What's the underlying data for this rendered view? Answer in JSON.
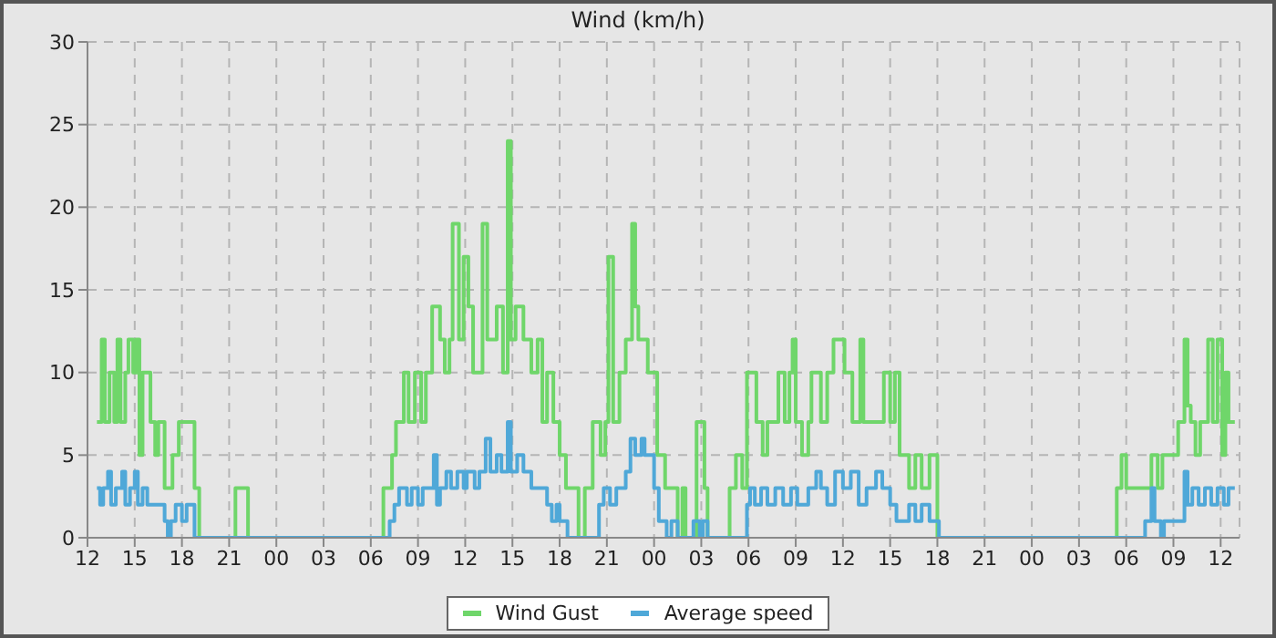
{
  "chart_data": {
    "type": "step",
    "title": "Wind (km/h)",
    "xlim": [
      "--01-01T12:00",
      "--01-04T13:12"
    ],
    "ylim": [
      0,
      30
    ],
    "yticks": [
      0,
      5,
      10,
      15,
      20,
      25,
      30
    ],
    "xticks": [
      {
        "value": "--01-01T12:00",
        "label": "12"
      },
      {
        "value": "--01-01T15:00",
        "label": "15"
      },
      {
        "value": "--01-01T18:00",
        "label": "18"
      },
      {
        "value": "--01-01T21:00",
        "label": "21"
      },
      {
        "value": "--01-02T00:00",
        "label": "00"
      },
      {
        "value": "--01-02T03:00",
        "label": "03"
      },
      {
        "value": "--01-02T06:00",
        "label": "06"
      },
      {
        "value": "--01-02T09:00",
        "label": "09"
      },
      {
        "value": "--01-02T12:00",
        "label": "12"
      },
      {
        "value": "--01-02T15:00",
        "label": "15"
      },
      {
        "value": "--01-02T18:00",
        "label": "18"
      },
      {
        "value": "--01-02T21:00",
        "label": "21"
      },
      {
        "value": "--01-03T00:00",
        "label": "00"
      },
      {
        "value": "--01-03T03:00",
        "label": "03"
      },
      {
        "value": "--01-03T06:00",
        "label": "06"
      },
      {
        "value": "--01-03T09:00",
        "label": "09"
      },
      {
        "value": "--01-03T12:00",
        "label": "12"
      },
      {
        "value": "--01-03T15:00",
        "label": "15"
      },
      {
        "value": "--01-03T18:00",
        "label": "18"
      },
      {
        "value": "--01-03T21:00",
        "label": "21"
      },
      {
        "value": "--01-04T00:00",
        "label": "00"
      },
      {
        "value": "--01-04T03:00",
        "label": "03"
      },
      {
        "value": "--01-04T06:00",
        "label": "06"
      },
      {
        "value": "--01-04T09:00",
        "label": "09"
      },
      {
        "value": "--01-04T12:00",
        "label": "12"
      }
    ],
    "grid": true,
    "legend": "bottom",
    "marker": "none",
    "line_style": "solid",
    "series": [
      {
        "name": "Wind Gust",
        "color": "#6fd66a",
        "x": [
          "--01-01T12:36",
          "--01-01T12:54",
          "--01-01T13:06",
          "--01-01T13:24",
          "--01-01T13:42",
          "--01-01T13:54",
          "--01-01T14:06",
          "--01-01T14:24",
          "--01-01T14:36",
          "--01-01T14:54",
          "--01-01T15:06",
          "--01-01T15:18",
          "--01-01T15:30",
          "--01-01T16:00",
          "--01-01T16:18",
          "--01-01T16:30",
          "--01-01T16:54",
          "--01-01T17:24",
          "--01-01T17:48",
          "--01-01T18:48",
          "--01-01T19:06",
          "--01-01T21:24",
          "--01-01T22:12",
          "--01-02T06:48",
          "--01-02T07:21",
          "--01-02T07:36",
          "--01-02T08:06",
          "--01-02T08:24",
          "--01-02T08:48",
          "--01-02T09:12",
          "--01-02T09:30",
          "--01-02T09:54",
          "--01-02T10:24",
          "--01-02T10:42",
          "--01-02T11:00",
          "--01-02T11:12",
          "--01-02T11:36",
          "--01-02T11:54",
          "--01-02T12:12",
          "--01-02T12:30",
          "--01-02T13:06",
          "--01-02T13:24",
          "--01-02T14:00",
          "--01-02T14:24",
          "--01-02T14:42",
          "--01-02T14:54",
          "--01-02T15:12",
          "--01-02T15:42",
          "--01-02T16:12",
          "--01-02T16:36",
          "--01-02T16:54",
          "--01-02T17:12",
          "--01-02T17:36",
          "--01-02T18:00",
          "--01-02T18:24",
          "--01-02T18:42",
          "--01-02T19:12",
          "--01-02T19:36",
          "--01-02T20:06",
          "--01-02T20:36",
          "--01-02T20:54",
          "--01-02T21:06",
          "--01-02T21:24",
          "--01-02T21:48",
          "--01-02T22:12",
          "--01-02T22:36",
          "--01-02T22:48",
          "--01-02T23:00",
          "--01-02T23:36",
          "--01-03T00:12",
          "--01-03T00:42",
          "--01-03T01:30",
          "--01-03T01:48",
          "--01-03T02:00",
          "--01-03T02:42",
          "--01-03T03:12",
          "--01-03T03:24",
          "--01-03T04:48",
          "--01-03T05:12",
          "--01-03T05:36",
          "--01-03T05:54",
          "--01-03T06:30",
          "--01-03T06:54",
          "--01-03T07:12",
          "--01-03T07:54",
          "--01-03T08:18",
          "--01-03T08:36",
          "--01-03T08:48",
          "--01-03T09:00",
          "--01-03T09:24",
          "--01-03T09:48",
          "--01-03T10:00",
          "--01-03T10:36",
          "--01-03T11:00",
          "--01-03T11:24",
          "--01-03T12:06",
          "--01-03T12:36",
          "--01-03T13:06",
          "--01-03T13:18",
          "--01-03T14:36",
          "--01-03T15:00",
          "--01-03T15:18",
          "--01-03T15:36",
          "--01-03T16:12",
          "--01-03T16:36",
          "--01-03T17:00",
          "--01-03T17:30",
          "--01-03T18:00",
          "--01-04T05:24",
          "--01-04T05:42",
          "--01-04T06:00",
          "--01-04T07:36",
          "--01-04T08:00",
          "--01-04T08:18",
          "--01-04T09:18",
          "--01-04T09:42",
          "--01-04T09:54",
          "--01-04T10:06",
          "--01-04T10:24",
          "--01-04T10:42",
          "--01-04T11:12",
          "--01-04T11:30",
          "--01-04T11:48",
          "--01-04T12:06",
          "--01-04T12:18",
          "--01-04T12:30",
          "--01-04T12:54"
        ],
        "values": [
          7,
          12,
          7,
          10,
          7,
          12,
          7,
          10,
          12,
          10,
          12,
          5,
          10,
          7,
          5,
          7,
          3,
          5,
          7,
          3,
          0,
          3,
          0,
          3,
          5,
          7,
          10,
          7,
          10,
          7,
          10,
          14,
          12,
          10,
          12,
          19,
          12,
          17,
          14,
          10,
          19,
          12,
          14,
          10,
          24,
          12,
          14,
          12,
          10,
          12,
          7,
          10,
          7,
          5,
          3,
          3,
          0,
          3,
          7,
          5,
          7,
          17,
          7,
          10,
          12,
          19,
          14,
          12,
          10,
          5,
          3,
          0,
          3,
          0,
          7,
          3,
          0,
          3,
          5,
          3,
          10,
          7,
          5,
          7,
          10,
          7,
          10,
          12,
          7,
          5,
          7,
          10,
          7,
          10,
          12,
          10,
          7,
          12,
          7,
          10,
          7,
          10,
          5,
          3,
          5,
          3,
          5,
          0,
          3,
          5,
          3,
          5,
          3,
          5,
          7,
          12,
          8,
          7,
          5,
          7,
          12,
          7,
          12,
          5,
          10,
          7,
          7
        ]
      },
      {
        "name": "Average speed",
        "color": "#4fa8d8",
        "x": [
          "--01-01T12:36",
          "--01-01T12:48",
          "--01-01T13:00",
          "--01-01T13:18",
          "--01-01T13:30",
          "--01-01T13:48",
          "--01-01T14:12",
          "--01-01T14:24",
          "--01-01T14:42",
          "--01-01T15:00",
          "--01-01T15:12",
          "--01-01T15:30",
          "--01-01T15:48",
          "--01-01T16:54",
          "--01-01T17:06",
          "--01-01T17:18",
          "--01-01T17:36",
          "--01-01T18:00",
          "--01-01T18:18",
          "--01-01T18:48",
          "--01-02T07:12",
          "--01-02T07:30",
          "--01-02T07:48",
          "--01-02T08:18",
          "--01-02T08:36",
          "--01-02T09:00",
          "--01-02T09:18",
          "--01-02T10:00",
          "--01-02T10:12",
          "--01-02T10:24",
          "--01-02T10:48",
          "--01-02T11:06",
          "--01-02T11:30",
          "--01-02T11:54",
          "--01-02T12:06",
          "--01-02T12:36",
          "--01-02T12:54",
          "--01-02T13:18",
          "--01-02T13:36",
          "--01-02T14:00",
          "--01-02T14:18",
          "--01-02T14:42",
          "--01-02T14:54",
          "--01-02T15:18",
          "--01-02T15:42",
          "--01-02T16:12",
          "--01-02T17:12",
          "--01-02T17:30",
          "--01-02T17:48",
          "--01-02T18:00",
          "--01-02T18:30",
          "--01-02T20:30",
          "--01-02T20:48",
          "--01-02T21:12",
          "--01-02T21:36",
          "--01-02T22:12",
          "--01-02T22:30",
          "--01-02T22:48",
          "--01-02T23:12",
          "--01-02T23:24",
          "--01-03T00:00",
          "--01-03T00:18",
          "--01-03T00:48",
          "--01-03T01:06",
          "--01-03T01:30",
          "--01-03T02:30",
          "--01-03T02:54",
          "--01-03T03:06",
          "--01-03T03:24",
          "--01-03T05:54",
          "--01-03T06:06",
          "--01-03T06:24",
          "--01-03T06:48",
          "--01-03T07:12",
          "--01-03T07:42",
          "--01-03T08:12",
          "--01-03T08:42",
          "--01-03T09:06",
          "--01-03T09:48",
          "--01-03T10:18",
          "--01-03T10:36",
          "--01-03T11:00",
          "--01-03T11:30",
          "--01-03T12:00",
          "--01-03T12:30",
          "--01-03T13:00",
          "--01-03T13:30",
          "--01-03T14:06",
          "--01-03T14:30",
          "--01-03T15:00",
          "--01-03T15:24",
          "--01-03T16:12",
          "--01-03T16:36",
          "--01-03T17:00",
          "--01-03T17:30",
          "--01-03T18:06",
          "--01-04T07:12",
          "--01-04T07:36",
          "--01-04T07:48",
          "--01-04T08:12",
          "--01-04T08:24",
          "--01-04T09:42",
          "--01-04T09:54",
          "--01-04T10:12",
          "--01-04T10:36",
          "--01-04T11:00",
          "--01-04T11:24",
          "--01-04T11:48",
          "--01-04T12:12",
          "--01-04T12:30",
          "--01-04T12:54"
        ],
        "values": [
          3,
          2,
          3,
          4,
          2,
          3,
          4,
          2,
          3,
          4,
          2,
          3,
          2,
          1,
          0,
          1,
          2,
          1,
          2,
          0,
          1,
          2,
          3,
          2,
          3,
          2,
          3,
          5,
          2,
          3,
          4,
          3,
          4,
          3,
          4,
          3,
          4,
          6,
          4,
          5,
          4,
          7,
          4,
          5,
          4,
          3,
          2,
          1,
          2,
          1,
          0,
          2,
          3,
          2,
          3,
          4,
          6,
          5,
          6,
          5,
          3,
          1,
          0,
          1,
          0,
          1,
          0,
          1,
          0,
          2,
          3,
          2,
          3,
          2,
          3,
          2,
          3,
          2,
          3,
          4,
          3,
          2,
          4,
          3,
          4,
          2,
          3,
          4,
          3,
          2,
          1,
          2,
          1,
          2,
          1,
          0,
          1,
          3,
          1,
          0,
          1,
          4,
          2,
          3,
          2,
          3,
          2,
          3,
          2,
          3,
          3
        ]
      }
    ]
  }
}
